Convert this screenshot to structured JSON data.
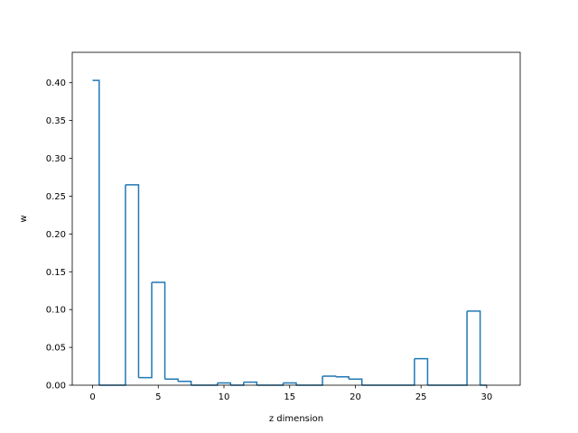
{
  "chart_data": {
    "type": "step",
    "title": "",
    "xlabel": "z dimension",
    "ylabel": "w",
    "xlim": [
      -1.55,
      32.55
    ],
    "ylim": [
      0,
      0.4402
    ],
    "xticks": [
      0,
      5,
      10,
      15,
      20,
      25,
      30
    ],
    "xtick_labels": [
      "0",
      "5",
      "10",
      "15",
      "20",
      "25",
      "30"
    ],
    "yticks": [
      0.0,
      0.05,
      0.1,
      0.15,
      0.2,
      0.25,
      0.3,
      0.35,
      0.4
    ],
    "ytick_labels": [
      "0.00",
      "0.05",
      "0.10",
      "0.15",
      "0.20",
      "0.25",
      "0.30",
      "0.35",
      "0.40"
    ],
    "grid": false,
    "series": [
      {
        "color": "#1f77b4",
        "x": [
          0,
          1,
          2,
          3,
          4,
          5,
          6,
          7,
          8,
          9,
          10,
          11,
          12,
          13,
          14,
          15,
          16,
          17,
          18,
          19,
          20,
          21,
          22,
          23,
          24,
          25,
          26,
          27,
          28,
          29,
          30
        ],
        "values": [
          0.403,
          0.0,
          0.0,
          0.265,
          0.01,
          0.136,
          0.008,
          0.005,
          0.0,
          0.0,
          0.003,
          0.0,
          0.004,
          0.0,
          0.0,
          0.003,
          0.0,
          0.0,
          0.012,
          0.011,
          0.008,
          0.0,
          0.0,
          0.0,
          0.0,
          0.035,
          0.0,
          0.0,
          0.0,
          0.098,
          0.0
        ]
      }
    ]
  }
}
